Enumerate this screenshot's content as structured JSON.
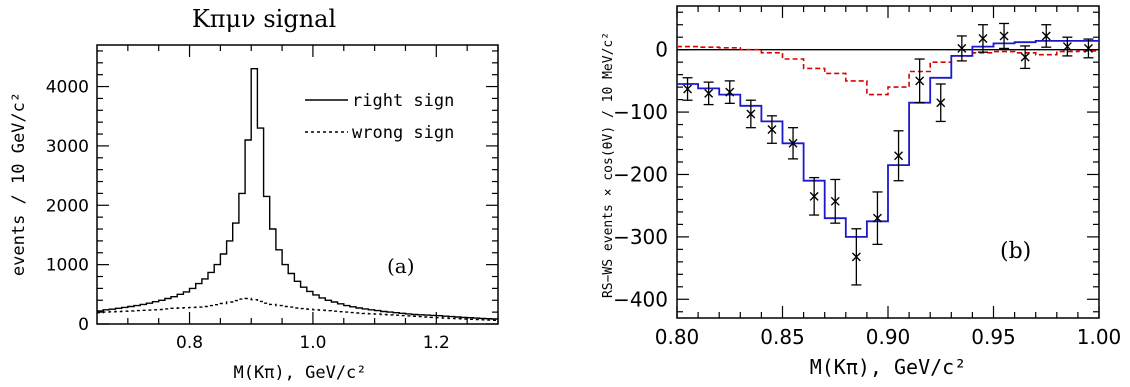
{
  "chart_data": [
    {
      "panel": "(a)",
      "type": "line",
      "title": "Kπμν signal",
      "xlabel": "M(Kπ), GeV/c²",
      "ylabel": "events / 10 GeV/c²",
      "xlim": [
        0.65,
        1.3
      ],
      "ylim": [
        0,
        4700
      ],
      "xticks": [
        0.8,
        1.0,
        1.2
      ],
      "xtick_labels": [
        "0.8",
        "1.0",
        "1.2"
      ],
      "yticks": [
        0,
        1000,
        2000,
        3000,
        4000
      ],
      "ytick_labels": [
        "0",
        "1000",
        "2000",
        "3000",
        "4000"
      ],
      "annotation": "(a)",
      "legend_position": "top-right",
      "series": [
        {
          "name": "right sign",
          "style": "solid",
          "x": [
            0.65,
            0.66,
            0.67,
            0.68,
            0.69,
            0.7,
            0.71,
            0.72,
            0.73,
            0.74,
            0.75,
            0.76,
            0.77,
            0.78,
            0.79,
            0.8,
            0.81,
            0.82,
            0.83,
            0.84,
            0.85,
            0.86,
            0.87,
            0.88,
            0.89,
            0.9,
            0.91,
            0.92,
            0.93,
            0.94,
            0.95,
            0.96,
            0.97,
            0.98,
            0.99,
            1.0,
            1.01,
            1.02,
            1.03,
            1.04,
            1.05,
            1.06,
            1.07,
            1.08,
            1.09,
            1.1,
            1.11,
            1.12,
            1.13,
            1.14,
            1.15,
            1.16,
            1.17,
            1.18,
            1.19,
            1.2,
            1.21,
            1.22,
            1.23,
            1.24,
            1.25,
            1.26,
            1.27,
            1.28,
            1.29
          ],
          "values": [
            220,
            240,
            250,
            265,
            280,
            295,
            310,
            330,
            350,
            375,
            400,
            430,
            460,
            500,
            540,
            600,
            680,
            760,
            870,
            1000,
            1180,
            1400,
            1700,
            2200,
            3100,
            4300,
            3300,
            2150,
            1600,
            1250,
            1000,
            850,
            720,
            620,
            550,
            490,
            440,
            400,
            370,
            340,
            310,
            290,
            270,
            255,
            240,
            225,
            210,
            200,
            190,
            180,
            170,
            160,
            155,
            150,
            145,
            140,
            132,
            125,
            118,
            112,
            106,
            100,
            95,
            90,
            85
          ]
        },
        {
          "name": "wrong sign",
          "style": "dashed",
          "x": [
            0.65,
            0.66,
            0.67,
            0.68,
            0.69,
            0.7,
            0.71,
            0.72,
            0.73,
            0.74,
            0.75,
            0.76,
            0.77,
            0.78,
            0.79,
            0.8,
            0.81,
            0.82,
            0.83,
            0.84,
            0.85,
            0.86,
            0.87,
            0.88,
            0.89,
            0.9,
            0.91,
            0.92,
            0.93,
            0.94,
            0.95,
            0.96,
            0.97,
            0.98,
            0.99,
            1.0,
            1.01,
            1.02,
            1.03,
            1.04,
            1.05,
            1.06,
            1.07,
            1.08,
            1.09,
            1.1,
            1.11,
            1.12,
            1.13,
            1.14,
            1.15,
            1.16,
            1.17,
            1.18,
            1.19,
            1.2,
            1.21,
            1.22,
            1.23,
            1.24,
            1.25,
            1.26,
            1.27,
            1.28,
            1.29
          ],
          "values": [
            190,
            200,
            205,
            210,
            215,
            220,
            225,
            230,
            235,
            240,
            245,
            255,
            265,
            270,
            275,
            280,
            285,
            295,
            310,
            325,
            345,
            370,
            395,
            420,
            430,
            410,
            380,
            350,
            330,
            310,
            295,
            285,
            270,
            260,
            250,
            240,
            232,
            224,
            216,
            208,
            200,
            192,
            185,
            178,
            172,
            166,
            160,
            154,
            148,
            142,
            136,
            130,
            124,
            118,
            112,
            106,
            100,
            95,
            90,
            85,
            80,
            75,
            70,
            66,
            62
          ]
        }
      ]
    },
    {
      "panel": "(b)",
      "type": "line",
      "xlabel": "M(Kπ), GeV/c²",
      "ylabel": "RS−WS events × cos(θV) / 10 MeV/c²",
      "xlim": [
        0.8,
        1.0
      ],
      "ylim": [
        -430,
        70
      ],
      "xticks": [
        0.8,
        0.85,
        0.9,
        0.95,
        1.0
      ],
      "xtick_labels": [
        "0.80",
        "0.85",
        "0.90",
        "0.95",
        "1.00"
      ],
      "yticks": [
        -400,
        -300,
        -200,
        -100,
        0
      ],
      "ytick_labels": [
        "−400",
        "−300",
        "−200",
        "−100",
        "0"
      ],
      "annotation": "(b)",
      "zero_line": true,
      "series": [
        {
          "style": "points with error bars, x markers",
          "color": "#000000",
          "x": [
            0.805,
            0.815,
            0.825,
            0.835,
            0.845,
            0.855,
            0.865,
            0.875,
            0.885,
            0.895,
            0.905,
            0.915,
            0.925,
            0.935,
            0.945,
            0.955,
            0.965,
            0.975,
            0.985,
            0.995
          ],
          "values": [
            -63,
            -70,
            -68,
            -103,
            -128,
            -150,
            -235,
            -243,
            -332,
            -270,
            -170,
            -50,
            -85,
            2,
            18,
            22,
            -12,
            22,
            5,
            2
          ],
          "errors": [
            18,
            18,
            18,
            22,
            22,
            25,
            30,
            35,
            45,
            42,
            40,
            35,
            30,
            20,
            22,
            20,
            18,
            18,
            15,
            15
          ]
        },
        {
          "style": "solid histogram (fit)",
          "color": "#1a1acc",
          "x": [
            0.8,
            0.81,
            0.82,
            0.83,
            0.84,
            0.85,
            0.86,
            0.87,
            0.88,
            0.89,
            0.9,
            0.91,
            0.92,
            0.93,
            0.94,
            0.95,
            0.96,
            0.97,
            0.98,
            0.99
          ],
          "values": [
            -55,
            -62,
            -72,
            -90,
            -115,
            -150,
            -210,
            -270,
            -300,
            -275,
            -185,
            -85,
            -45,
            -10,
            5,
            10,
            12,
            14,
            14,
            14
          ]
        },
        {
          "style": "dashed histogram",
          "color": "#e00000",
          "x": [
            0.8,
            0.81,
            0.82,
            0.83,
            0.84,
            0.85,
            0.86,
            0.87,
            0.88,
            0.89,
            0.9,
            0.91,
            0.92,
            0.93,
            0.94,
            0.95,
            0.96,
            0.97,
            0.98,
            0.99
          ],
          "values": [
            5,
            4,
            3,
            0,
            -5,
            -15,
            -30,
            -38,
            -50,
            -72,
            -60,
            -35,
            -20,
            -10,
            -5,
            -3,
            -5,
            -8,
            -3,
            -2
          ]
        }
      ]
    }
  ]
}
